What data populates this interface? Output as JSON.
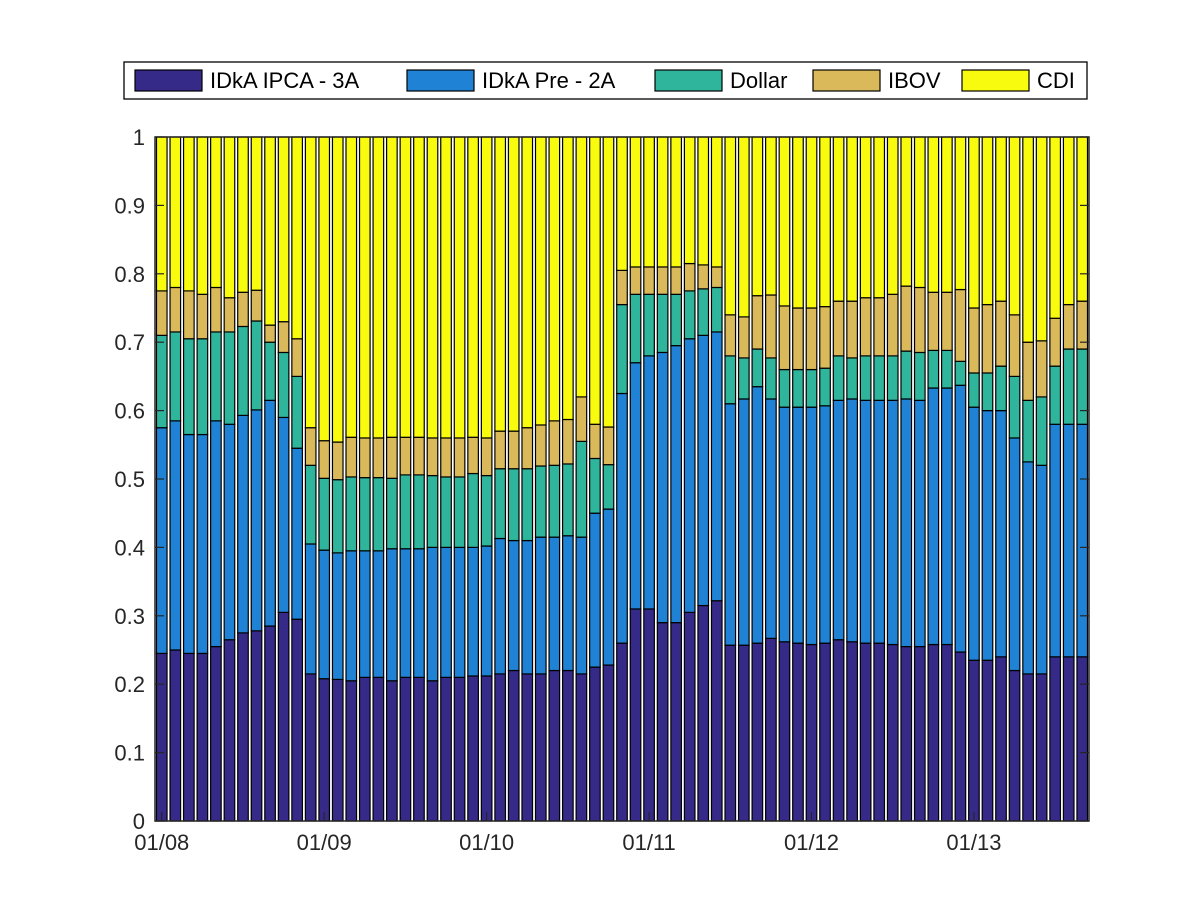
{
  "chart_data": {
    "type": "bar",
    "stacked": true,
    "x_tick_labels": [
      "01/08",
      "01/09",
      "01/10",
      "01/11",
      "01/12",
      "01/13"
    ],
    "x_tick_index": [
      0,
      12,
      24,
      36,
      48,
      60
    ],
    "y_ticks": [
      "0",
      "0.1",
      "0.2",
      "0.3",
      "0.4",
      "0.5",
      "0.6",
      "0.7",
      "0.8",
      "0.9",
      "1"
    ],
    "ylim": [
      0,
      1
    ],
    "legend_position": "top-center",
    "series": [
      {
        "name": "IDkA IPCA - 3A",
        "color": "#352A87",
        "values": [
          0.245,
          0.25,
          0.245,
          0.245,
          0.255,
          0.265,
          0.275,
          0.278,
          0.285,
          0.305,
          0.295,
          0.215,
          0.208,
          0.207,
          0.205,
          0.21,
          0.21,
          0.205,
          0.21,
          0.21,
          0.205,
          0.21,
          0.21,
          0.212,
          0.212,
          0.215,
          0.22,
          0.215,
          0.215,
          0.22,
          0.22,
          0.215,
          0.225,
          0.228,
          0.26,
          0.31,
          0.31,
          0.29,
          0.29,
          0.305,
          0.315,
          0.322,
          0.257,
          0.257,
          0.26,
          0.267,
          0.262,
          0.26,
          0.258,
          0.26,
          0.265,
          0.262,
          0.26,
          0.26,
          0.258,
          0.255,
          0.255,
          0.258,
          0.258,
          0.247,
          0.235,
          0.235,
          0.24,
          0.22,
          0.215,
          0.215,
          0.24,
          0.24,
          0.24
        ]
      },
      {
        "name": "IDkA Pre - 2A",
        "color": "#1F82D4",
        "values": [
          0.33,
          0.335,
          0.32,
          0.32,
          0.33,
          0.315,
          0.318,
          0.323,
          0.33,
          0.285,
          0.25,
          0.19,
          0.188,
          0.185,
          0.19,
          0.185,
          0.185,
          0.193,
          0.188,
          0.188,
          0.195,
          0.19,
          0.19,
          0.188,
          0.19,
          0.198,
          0.19,
          0.195,
          0.2,
          0.195,
          0.197,
          0.2,
          0.225,
          0.228,
          0.365,
          0.36,
          0.37,
          0.395,
          0.405,
          0.4,
          0.395,
          0.393,
          0.353,
          0.36,
          0.375,
          0.35,
          0.343,
          0.345,
          0.347,
          0.347,
          0.35,
          0.355,
          0.355,
          0.355,
          0.357,
          0.362,
          0.36,
          0.375,
          0.375,
          0.39,
          0.37,
          0.365,
          0.36,
          0.34,
          0.31,
          0.305,
          0.34,
          0.34,
          0.34
        ]
      },
      {
        "name": "Dollar",
        "color": "#2FB59C",
        "values": [
          0.135,
          0.13,
          0.14,
          0.14,
          0.13,
          0.135,
          0.13,
          0.13,
          0.085,
          0.095,
          0.105,
          0.115,
          0.105,
          0.107,
          0.108,
          0.107,
          0.107,
          0.103,
          0.108,
          0.108,
          0.105,
          0.103,
          0.103,
          0.108,
          0.103,
          0.102,
          0.105,
          0.105,
          0.104,
          0.105,
          0.105,
          0.14,
          0.08,
          0.065,
          0.13,
          0.1,
          0.09,
          0.085,
          0.075,
          0.07,
          0.068,
          0.065,
          0.07,
          0.06,
          0.055,
          0.06,
          0.055,
          0.055,
          0.055,
          0.055,
          0.065,
          0.06,
          0.065,
          0.065,
          0.065,
          0.07,
          0.07,
          0.055,
          0.055,
          0.035,
          0.05,
          0.055,
          0.065,
          0.09,
          0.09,
          0.1,
          0.085,
          0.11,
          0.11
        ]
      },
      {
        "name": "IBOV",
        "color": "#D9B95A",
        "values": [
          0.065,
          0.065,
          0.07,
          0.065,
          0.065,
          0.05,
          0.05,
          0.045,
          0.025,
          0.045,
          0.055,
          0.055,
          0.055,
          0.055,
          0.058,
          0.058,
          0.058,
          0.06,
          0.055,
          0.055,
          0.055,
          0.057,
          0.057,
          0.053,
          0.055,
          0.055,
          0.055,
          0.06,
          0.06,
          0.065,
          0.065,
          0.065,
          0.05,
          0.055,
          0.05,
          0.04,
          0.04,
          0.04,
          0.04,
          0.04,
          0.035,
          0.03,
          0.06,
          0.06,
          0.078,
          0.092,
          0.093,
          0.09,
          0.09,
          0.09,
          0.08,
          0.083,
          0.085,
          0.085,
          0.09,
          0.095,
          0.095,
          0.085,
          0.085,
          0.105,
          0.095,
          0.1,
          0.095,
          0.09,
          0.085,
          0.082,
          0.07,
          0.065,
          0.07
        ]
      },
      {
        "name": "CDI",
        "color": "#F9FB0E",
        "values": [
          0.225,
          0.22,
          0.225,
          0.23,
          0.22,
          0.235,
          0.227,
          0.224,
          0.275,
          0.27,
          0.295,
          0.425,
          0.444,
          0.446,
          0.439,
          0.44,
          0.44,
          0.439,
          0.439,
          0.439,
          0.44,
          0.44,
          0.44,
          0.439,
          0.44,
          0.43,
          0.43,
          0.425,
          0.421,
          0.415,
          0.413,
          0.38,
          0.42,
          0.424,
          0.195,
          0.19,
          0.19,
          0.19,
          0.19,
          0.185,
          0.187,
          0.19,
          0.26,
          0.263,
          0.232,
          0.231,
          0.247,
          0.25,
          0.25,
          0.248,
          0.24,
          0.24,
          0.235,
          0.235,
          0.23,
          0.218,
          0.22,
          0.227,
          0.227,
          0.223,
          0.25,
          0.245,
          0.24,
          0.26,
          0.3,
          0.298,
          0.265,
          0.245,
          0.24
        ]
      }
    ]
  }
}
